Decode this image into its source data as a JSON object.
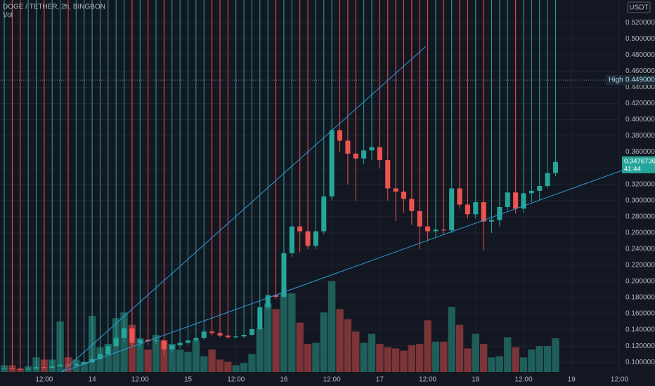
{
  "chart_data": {
    "type": "candlestick",
    "title": "DOGE / TETHER, 2h, BINGBON",
    "volume_title": "Vol",
    "currency": "USDT",
    "up_color": "#26a69a",
    "down_color": "#ef5350",
    "volume_up_color": "#1f5e5a",
    "volume_down_color": "#7b3437",
    "grid": true,
    "open": [
      0.092,
      0.0925,
      0.092,
      0.091,
      0.092,
      0.094,
      0.093,
      0.095,
      0.097,
      0.096,
      0.098,
      0.1,
      0.104,
      0.11,
      0.12,
      0.13,
      0.142,
      0.124,
      0.128,
      0.126,
      0.127,
      0.116,
      0.121,
      0.124,
      0.127,
      0.13,
      0.138,
      0.136,
      0.133,
      0.131,
      0.132,
      0.134,
      0.141,
      0.168,
      0.183,
      0.181,
      0.235,
      0.268,
      0.262,
      0.244,
      0.262,
      0.305,
      0.387,
      0.374,
      0.358,
      0.352,
      0.362,
      0.366,
      0.35,
      0.315,
      0.311,
      0.302,
      0.287,
      0.268,
      0.262,
      0.264,
      0.263,
      0.315,
      0.295,
      0.283,
      0.298,
      0.274,
      0.276,
      0.292,
      0.31,
      0.29,
      0.309,
      0.312,
      0.318,
      0.334
    ],
    "high": {
      "value": 0.449,
      "label": "0.4490000"
    },
    "low": [
      0.091,
      0.091,
      0.09,
      0.09,
      0.091,
      0.092,
      0.092,
      0.094,
      0.095,
      0.095,
      0.097,
      0.099,
      0.103,
      0.109,
      0.118,
      0.125,
      0.12,
      0.118,
      0.121,
      0.122,
      0.108,
      0.112,
      0.117,
      0.121,
      0.124,
      0.128,
      0.133,
      0.131,
      0.129,
      0.129,
      0.13,
      0.132,
      0.139,
      0.165,
      0.178,
      0.179,
      0.23,
      0.236,
      0.24,
      0.24,
      0.258,
      0.3,
      0.36,
      0.32,
      0.3,
      0.345,
      0.35,
      0.34,
      0.3,
      0.275,
      0.285,
      0.27,
      0.24,
      0.25,
      0.255,
      0.258,
      0.26,
      0.29,
      0.278,
      0.278,
      0.238,
      0.26,
      0.268,
      0.288,
      0.284,
      0.285,
      0.298,
      0.3,
      0.315,
      0.33
    ],
    "close": [
      0.0925,
      0.092,
      0.091,
      0.092,
      0.094,
      0.093,
      0.095,
      0.097,
      0.096,
      0.098,
      0.1,
      0.104,
      0.11,
      0.12,
      0.13,
      0.142,
      0.124,
      0.128,
      0.126,
      0.127,
      0.116,
      0.121,
      0.124,
      0.127,
      0.13,
      0.138,
      0.136,
      0.133,
      0.131,
      0.132,
      0.134,
      0.141,
      0.168,
      0.183,
      0.181,
      0.235,
      0.268,
      0.262,
      0.244,
      0.262,
      0.305,
      0.387,
      0.374,
      0.358,
      0.352,
      0.362,
      0.366,
      0.35,
      0.315,
      0.311,
      0.302,
      0.287,
      0.268,
      0.262,
      0.264,
      0.263,
      0.315,
      0.295,
      0.283,
      0.298,
      0.274,
      0.276,
      0.292,
      0.31,
      0.29,
      0.309,
      0.312,
      0.318,
      0.334,
      0.3476736
    ],
    "volume": [
      6,
      6,
      3,
      5,
      13,
      11,
      11,
      45,
      13,
      11,
      9,
      50,
      22,
      25,
      48,
      53,
      42,
      30,
      20,
      33,
      28,
      25,
      20,
      18,
      28,
      14,
      20,
      11,
      9,
      6,
      8,
      16,
      39,
      61,
      56,
      70,
      70,
      44,
      25,
      26,
      53,
      81,
      56,
      47,
      36,
      26,
      34,
      25,
      22,
      21,
      19,
      24,
      25,
      46,
      27,
      27,
      58,
      42,
      21,
      34,
      25,
      13,
      14,
      31,
      22,
      13,
      20,
      23,
      23,
      30
    ],
    "close_label": "0.3476736",
    "countdown": "41:44",
    "high_text": "High",
    "xlim": [
      -0.53,
      77.05
    ],
    "xticks": [
      {
        "value": 5,
        "label": "12:00"
      },
      {
        "value": 11,
        "label": "14"
      },
      {
        "value": 17,
        "label": "12:00"
      },
      {
        "value": 23,
        "label": "15"
      },
      {
        "value": 29,
        "label": "12:00"
      },
      {
        "value": 35,
        "label": "16"
      },
      {
        "value": 41,
        "label": "12:00"
      },
      {
        "value": 47,
        "label": "17"
      },
      {
        "value": 53,
        "label": "12:00"
      },
      {
        "value": 59,
        "label": "18"
      },
      {
        "value": 65,
        "label": "12:00"
      },
      {
        "value": 71,
        "label": "19"
      },
      {
        "value": 77,
        "label": "12:00"
      }
    ],
    "ylim": [
      0.088,
      0.548
    ],
    "yticks": [
      {
        "value": 0.1,
        "label": "0.1000000"
      },
      {
        "value": 0.12,
        "label": "0.1200000"
      },
      {
        "value": 0.14,
        "label": "0.1400000"
      },
      {
        "value": 0.16,
        "label": "0.1600000"
      },
      {
        "value": 0.18,
        "label": "0.1800000"
      },
      {
        "value": 0.2,
        "label": "0.2000000"
      },
      {
        "value": 0.22,
        "label": "0.2200000"
      },
      {
        "value": 0.24,
        "label": "0.2400000"
      },
      {
        "value": 0.26,
        "label": "0.2600000"
      },
      {
        "value": 0.28,
        "label": "0.2800000"
      },
      {
        "value": 0.3,
        "label": "0.3000000"
      },
      {
        "value": 0.32,
        "label": "0.3200000"
      },
      {
        "value": 0.34,
        "label": "0.3400000"
      },
      {
        "value": 0.36,
        "label": "0.3600000"
      },
      {
        "value": 0.38,
        "label": "0.3800000"
      },
      {
        "value": 0.4,
        "label": "0.4000000"
      },
      {
        "value": 0.42,
        "label": "0.4200000"
      },
      {
        "value": 0.44,
        "label": "0.4400000"
      },
      {
        "value": 0.46,
        "label": "0.4600000"
      },
      {
        "value": 0.48,
        "label": "0.4800000"
      },
      {
        "value": 0.5,
        "label": "0.5000000"
      },
      {
        "value": 0.52,
        "label": "0.5200000"
      }
    ],
    "y2lim": [
      0,
      100
    ]
  }
}
